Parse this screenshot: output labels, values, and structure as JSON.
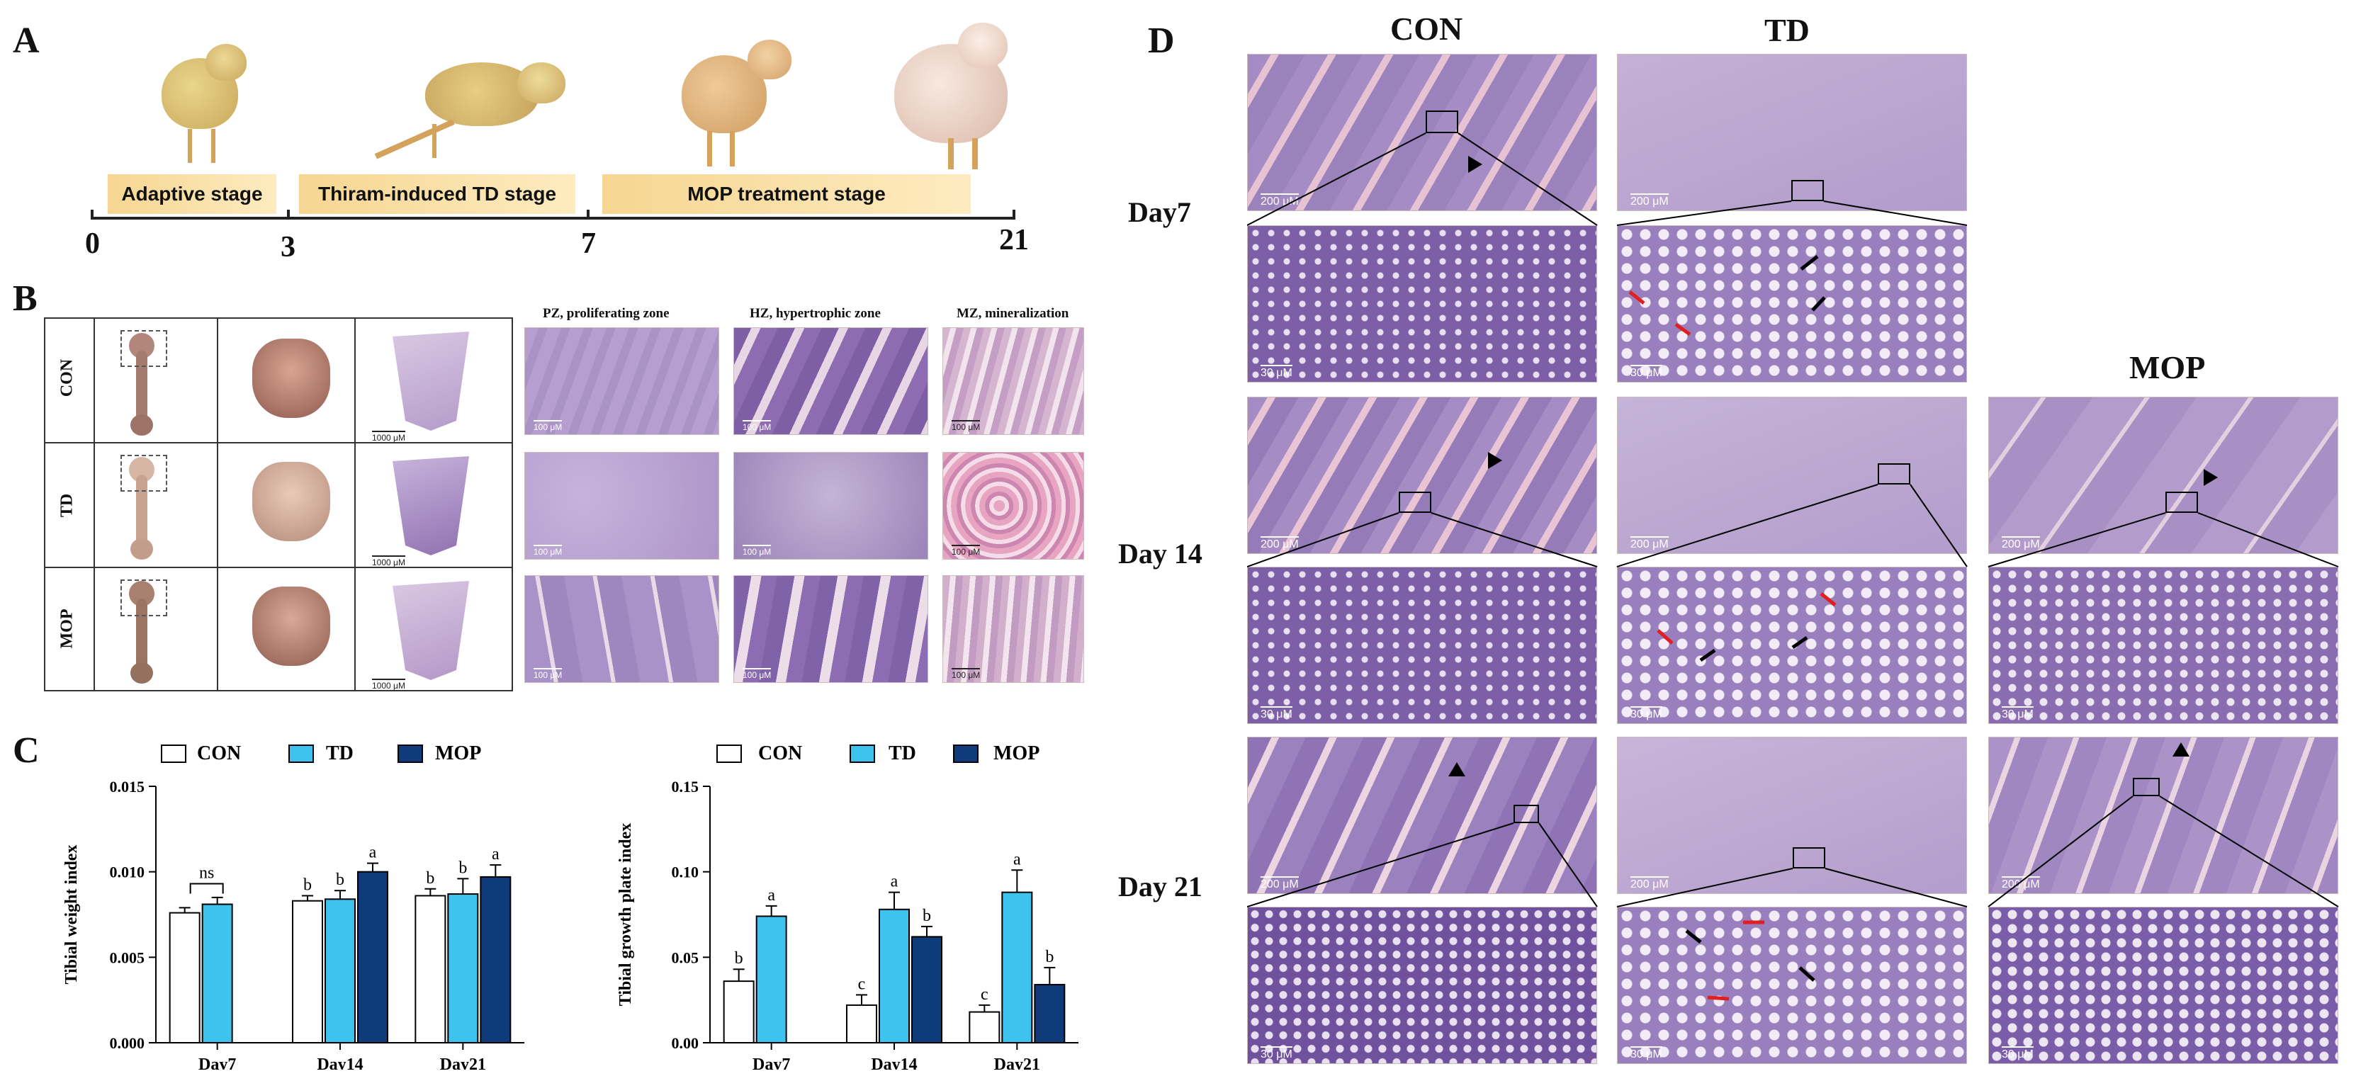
{
  "panel_labels": {
    "a": "A",
    "b": "B",
    "c": "C",
    "d": "D"
  },
  "panelA": {
    "stages": [
      "Adaptive stage",
      "Thiram-induced  TD stage",
      "MOP treatment stage"
    ],
    "ticks": [
      "0",
      "3",
      "7",
      "21"
    ]
  },
  "panelB": {
    "rows": [
      "CON",
      "TD",
      "MOP"
    ],
    "zone_headers": [
      "PZ, proliferating zone",
      "HZ, hypertrophic zone",
      "MZ, mineralization"
    ],
    "scale_small": "100 μM",
    "scale_section": "1000 μM"
  },
  "panelC": {
    "legend": [
      "CON",
      "TD",
      "MOP"
    ],
    "colors": {
      "CON": "#ffffff",
      "TD": "#3ec3ef",
      "MOP": "#0f3b7a"
    },
    "chart_data": [
      {
        "type": "bar",
        "ylabel": "Tibial weight index",
        "categories": [
          "Day7",
          "Day14",
          "Day21"
        ],
        "ylim": [
          0,
          0.015
        ],
        "yticks": [
          "0.000",
          "0.005",
          "0.010",
          "0.015"
        ],
        "series": [
          {
            "name": "CON",
            "values": [
              0.0076,
              0.0083,
              0.0086
            ],
            "errors": [
              0.0003,
              0.0003,
              0.0004
            ],
            "labels": [
              "",
              "b",
              "b"
            ]
          },
          {
            "name": "TD",
            "values": [
              0.0081,
              0.0084,
              0.0087
            ],
            "errors": [
              0.0004,
              0.0005,
              0.0009
            ],
            "labels": [
              "",
              "b",
              "b"
            ]
          },
          {
            "name": "MOP",
            "values": [
              null,
              0.01,
              0.0097
            ],
            "errors": [
              null,
              0.0005,
              0.0007
            ],
            "labels": [
              "",
              "a",
              "a"
            ]
          }
        ],
        "annotations": [
          "ns"
        ]
      },
      {
        "type": "bar",
        "ylabel": "Tibial growth plate index",
        "categories": [
          "Day7",
          "Day14",
          "Day21"
        ],
        "ylim": [
          0,
          0.15
        ],
        "yticks": [
          "0.00",
          "0.05",
          "0.10",
          "0.15"
        ],
        "series": [
          {
            "name": "CON",
            "values": [
              0.036,
              0.022,
              0.018
            ],
            "errors": [
              0.007,
              0.006,
              0.004
            ],
            "labels": [
              "b",
              "c",
              "c"
            ]
          },
          {
            "name": "TD",
            "values": [
              0.074,
              0.078,
              0.088
            ],
            "errors": [
              0.006,
              0.01,
              0.013
            ],
            "labels": [
              "a",
              "a",
              "a"
            ]
          },
          {
            "name": "MOP",
            "values": [
              null,
              0.062,
              0.034
            ],
            "errors": [
              null,
              0.006,
              0.01
            ],
            "labels": [
              "",
              "b",
              "b"
            ]
          }
        ]
      }
    ]
  },
  "panelD": {
    "columns": [
      "CON",
      "TD",
      "MOP"
    ],
    "days": [
      "Day7",
      "Day 14",
      "Day 21"
    ],
    "scale_low": "200 μM",
    "scale_high": "30 μM",
    "scale_high_alt": "30 μM"
  },
  "colors": {
    "he_pink": "#c98fb3",
    "he_purple": "#8f6fb0",
    "stage_bar": "#f8dc9c"
  }
}
